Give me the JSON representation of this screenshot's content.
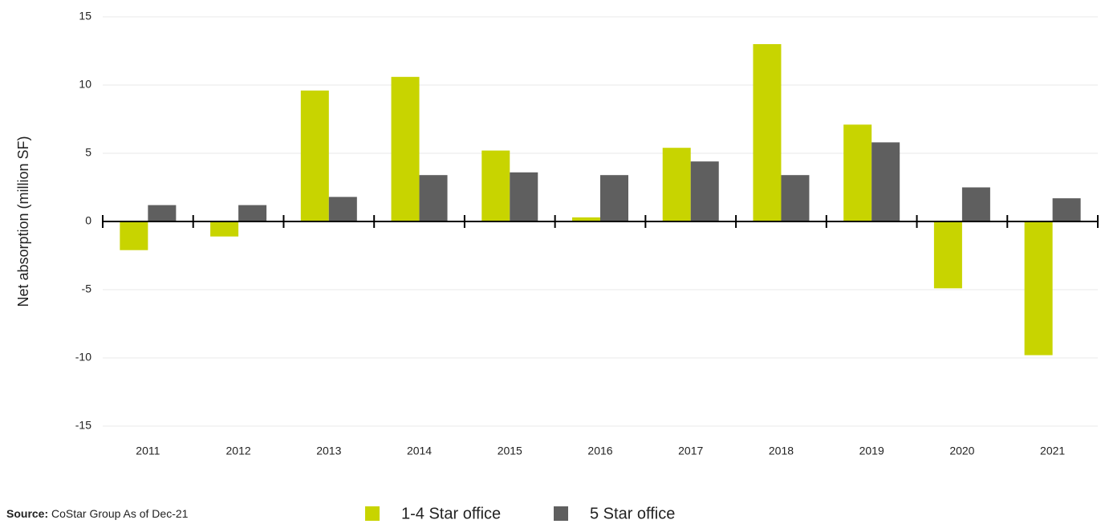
{
  "chart_data": {
    "type": "bar",
    "y_label": "Net absorption (million SF)",
    "categories": [
      "2011",
      "2012",
      "2013",
      "2014",
      "2015",
      "2016",
      "2017",
      "2018",
      "2019",
      "2020",
      "2021"
    ],
    "series": [
      {
        "name": "1-4 Star office",
        "color": "#c8d400",
        "values": [
          -2.1,
          -1.1,
          9.6,
          10.6,
          5.2,
          0.3,
          5.4,
          13.0,
          7.1,
          -4.9,
          -9.8
        ]
      },
      {
        "name": "5 Star office",
        "color": "#5f5f5f",
        "values": [
          1.2,
          1.2,
          1.8,
          3.4,
          3.6,
          3.4,
          4.4,
          3.4,
          5.8,
          2.5,
          1.7
        ]
      }
    ],
    "ylim": [
      -15,
      15
    ],
    "yticks": [
      -15,
      -10,
      -5,
      0,
      5,
      10,
      15
    ],
    "grid": true,
    "source_label": "Source:",
    "source": "CoStar Group As of Dec-21"
  }
}
